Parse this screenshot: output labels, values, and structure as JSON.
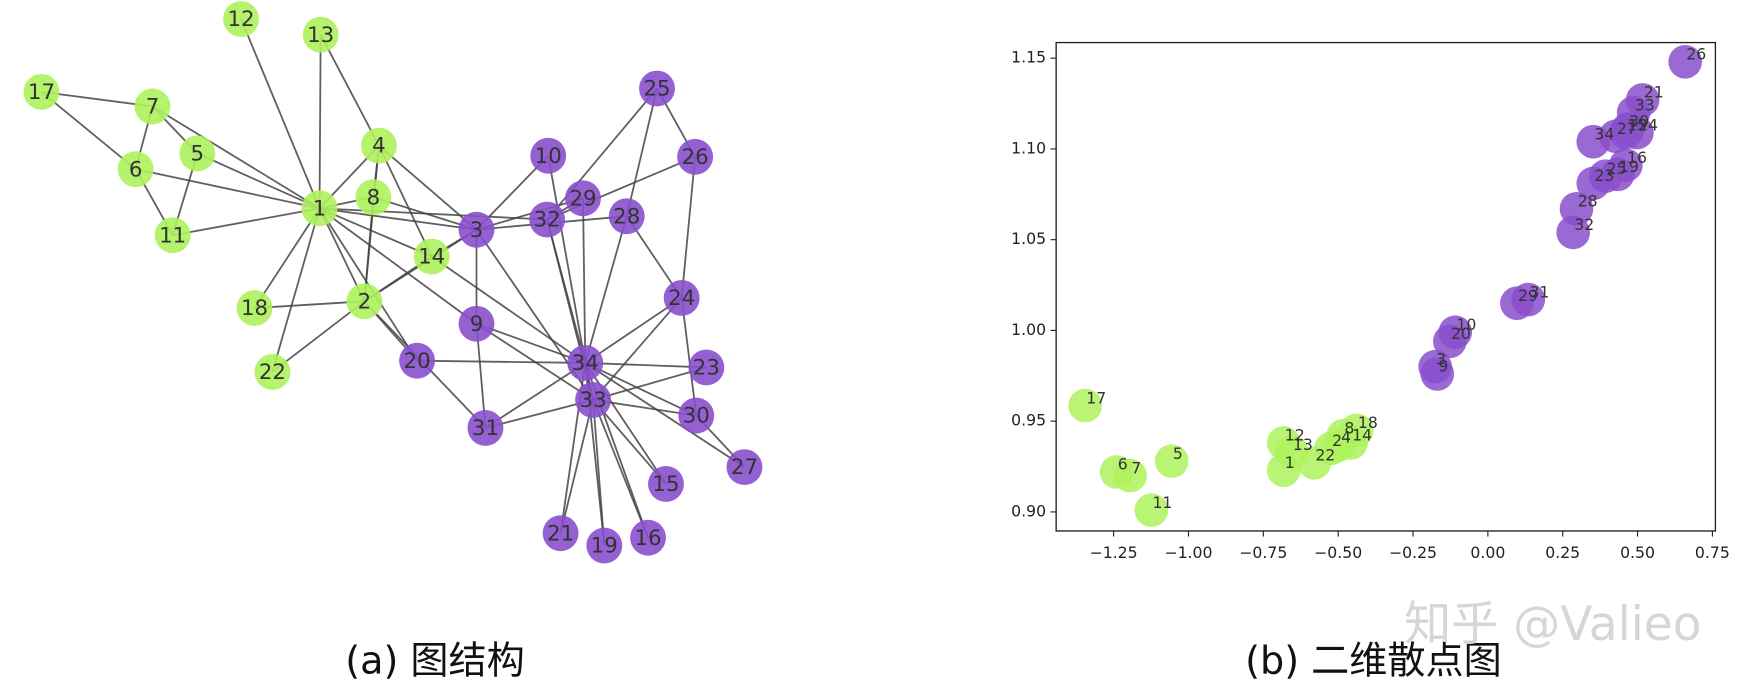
{
  "chart_data": [
    {
      "type": "network",
      "caption": "(a)  图结构",
      "nodes": [
        {
          "label": "1",
          "color": "#aef25c"
        },
        {
          "label": "2",
          "color": "#aef25c"
        },
        {
          "label": "3",
          "color": "#8a4fcc"
        },
        {
          "label": "4",
          "color": "#aef25c"
        },
        {
          "label": "5",
          "color": "#aef25c"
        },
        {
          "label": "6",
          "color": "#aef25c"
        },
        {
          "label": "7",
          "color": "#aef25c"
        },
        {
          "label": "8",
          "color": "#aef25c"
        },
        {
          "label": "9",
          "color": "#8a4fcc"
        },
        {
          "label": "10",
          "color": "#8a4fcc"
        },
        {
          "label": "11",
          "color": "#aef25c"
        },
        {
          "label": "12",
          "color": "#aef25c"
        },
        {
          "label": "13",
          "color": "#aef25c"
        },
        {
          "label": "14",
          "color": "#aef25c"
        },
        {
          "label": "15",
          "color": "#8a4fcc"
        },
        {
          "label": "16",
          "color": "#8a4fcc"
        },
        {
          "label": "17",
          "color": "#aef25c"
        },
        {
          "label": "18",
          "color": "#aef25c"
        },
        {
          "label": "19",
          "color": "#8a4fcc"
        },
        {
          "label": "20",
          "color": "#8a4fcc"
        },
        {
          "label": "21",
          "color": "#8a4fcc"
        },
        {
          "label": "22",
          "color": "#aef25c"
        },
        {
          "label": "23",
          "color": "#8a4fcc"
        },
        {
          "label": "24",
          "color": "#8a4fcc"
        },
        {
          "label": "25",
          "color": "#8a4fcc"
        },
        {
          "label": "26",
          "color": "#8a4fcc"
        },
        {
          "label": "27",
          "color": "#8a4fcc"
        },
        {
          "label": "28",
          "color": "#8a4fcc"
        },
        {
          "label": "29",
          "color": "#8a4fcc"
        },
        {
          "label": "30",
          "color": "#8a4fcc"
        },
        {
          "label": "31",
          "color": "#8a4fcc"
        },
        {
          "label": "32",
          "color": "#8a4fcc"
        },
        {
          "label": "33",
          "color": "#8a4fcc"
        },
        {
          "label": "34",
          "color": "#8a4fcc"
        }
      ],
      "edges": [
        [
          0,
          1
        ],
        [
          0,
          2
        ],
        [
          0,
          3
        ],
        [
          0,
          4
        ],
        [
          0,
          5
        ],
        [
          0,
          6
        ],
        [
          0,
          7
        ],
        [
          0,
          8
        ],
        [
          0,
          10
        ],
        [
          0,
          11
        ],
        [
          0,
          12
        ],
        [
          0,
          13
        ],
        [
          0,
          17
        ],
        [
          0,
          19
        ],
        [
          0,
          21
        ],
        [
          0,
          31
        ],
        [
          1,
          2
        ],
        [
          1,
          3
        ],
        [
          1,
          7
        ],
        [
          1,
          13
        ],
        [
          1,
          17
        ],
        [
          1,
          19
        ],
        [
          1,
          21
        ],
        [
          1,
          30
        ],
        [
          2,
          3
        ],
        [
          2,
          7
        ],
        [
          2,
          8
        ],
        [
          2,
          9
        ],
        [
          2,
          13
        ],
        [
          2,
          27
        ],
        [
          2,
          28
        ],
        [
          2,
          32
        ],
        [
          3,
          7
        ],
        [
          3,
          12
        ],
        [
          3,
          13
        ],
        [
          4,
          6
        ],
        [
          4,
          10
        ],
        [
          5,
          6
        ],
        [
          5,
          10
        ],
        [
          5,
          16
        ],
        [
          6,
          16
        ],
        [
          8,
          30
        ],
        [
          8,
          32
        ],
        [
          8,
          33
        ],
        [
          9,
          33
        ],
        [
          13,
          33
        ],
        [
          14,
          32
        ],
        [
          14,
          33
        ],
        [
          15,
          32
        ],
        [
          15,
          33
        ],
        [
          18,
          32
        ],
        [
          18,
          33
        ],
        [
          19,
          33
        ],
        [
          20,
          32
        ],
        [
          20,
          33
        ],
        [
          22,
          32
        ],
        [
          22,
          33
        ],
        [
          23,
          25
        ],
        [
          23,
          27
        ],
        [
          23,
          29
        ],
        [
          23,
          32
        ],
        [
          23,
          33
        ],
        [
          24,
          25
        ],
        [
          24,
          27
        ],
        [
          24,
          31
        ],
        [
          25,
          31
        ],
        [
          26,
          29
        ],
        [
          26,
          33
        ],
        [
          27,
          33
        ],
        [
          28,
          31
        ],
        [
          28,
          33
        ],
        [
          29,
          32
        ],
        [
          29,
          33
        ],
        [
          30,
          32
        ],
        [
          30,
          33
        ],
        [
          31,
          32
        ],
        [
          31,
          33
        ],
        [
          32,
          33
        ]
      ]
    },
    {
      "type": "scatter",
      "caption": "(b)  二维散点图",
      "labels": [
        "17",
        "6",
        "7",
        "5",
        "11",
        "12",
        "13",
        "1",
        "22",
        "2",
        "8",
        "4",
        "14",
        "18",
        "3",
        "9",
        "20",
        "10",
        "29",
        "31",
        "32",
        "28",
        "23",
        "25",
        "19",
        "16",
        "34",
        "27",
        "24",
        "30",
        "33",
        "21",
        "26",
        "15"
      ],
      "x": [
        -1.345,
        -1.24,
        -1.195,
        -1.056,
        -1.124,
        -0.682,
        -0.655,
        -0.682,
        -0.58,
        -0.524,
        -0.483,
        -0.494,
        -0.457,
        -0.438,
        -0.176,
        -0.169,
        -0.127,
        -0.109,
        0.097,
        0.135,
        0.285,
        0.296,
        0.352,
        0.393,
        0.434,
        0.461,
        0.352,
        0.427,
        0.498,
        0.468,
        0.487,
        0.517,
        0.659,
        0.461
      ],
      "y": [
        0.9586,
        0.922,
        0.92,
        0.928,
        0.901,
        0.938,
        0.933,
        0.923,
        0.927,
        0.935,
        0.942,
        0.937,
        0.938,
        0.945,
        0.98,
        0.976,
        0.994,
        0.999,
        1.015,
        1.017,
        1.054,
        1.067,
        1.081,
        1.085,
        1.086,
        1.091,
        1.104,
        1.107,
        1.109,
        1.111,
        1.12,
        1.127,
        1.148,
        1.109
      ],
      "colors": [
        "#aef25c",
        "#aef25c",
        "#aef25c",
        "#aef25c",
        "#aef25c",
        "#aef25c",
        "#aef25c",
        "#aef25c",
        "#aef25c",
        "#aef25c",
        "#aef25c",
        "#aef25c",
        "#aef25c",
        "#aef25c",
        "#8a4fcc",
        "#8a4fcc",
        "#8a4fcc",
        "#8a4fcc",
        "#8a4fcc",
        "#8a4fcc",
        "#8a4fcc",
        "#8a4fcc",
        "#8a4fcc",
        "#8a4fcc",
        "#8a4fcc",
        "#8a4fcc",
        "#8a4fcc",
        "#8a4fcc",
        "#8a4fcc",
        "#8a4fcc",
        "#8a4fcc",
        "#8a4fcc",
        "#8a4fcc",
        "#8a4fcc"
      ],
      "xlim": [
        -1.442,
        0.76
      ],
      "ylim": [
        0.8895,
        1.1586
      ],
      "xticks": [
        {
          "value": -1.25,
          "label": "−1.25"
        },
        {
          "value": -1.0,
          "label": "−1.00"
        },
        {
          "value": -0.75,
          "label": "−0.75"
        },
        {
          "value": -0.5,
          "label": "−0.50"
        },
        {
          "value": -0.25,
          "label": "−0.25"
        },
        {
          "value": 0,
          "label": "0.00"
        },
        {
          "value": 0.25,
          "label": "0.25"
        },
        {
          "value": 0.5,
          "label": "0.50"
        },
        {
          "value": 0.75,
          "label": "0.75"
        }
      ],
      "yticks": [
        {
          "value": 0.9,
          "label": "0.90"
        },
        {
          "value": 0.95,
          "label": "0.95"
        },
        {
          "value": 1.0,
          "label": "1.00"
        },
        {
          "value": 1.05,
          "label": "1.05"
        },
        {
          "value": 1.1,
          "label": "1.10"
        },
        {
          "value": 1.15,
          "label": "1.15"
        }
      ]
    }
  ],
  "watermark": "知乎 @Valieo"
}
